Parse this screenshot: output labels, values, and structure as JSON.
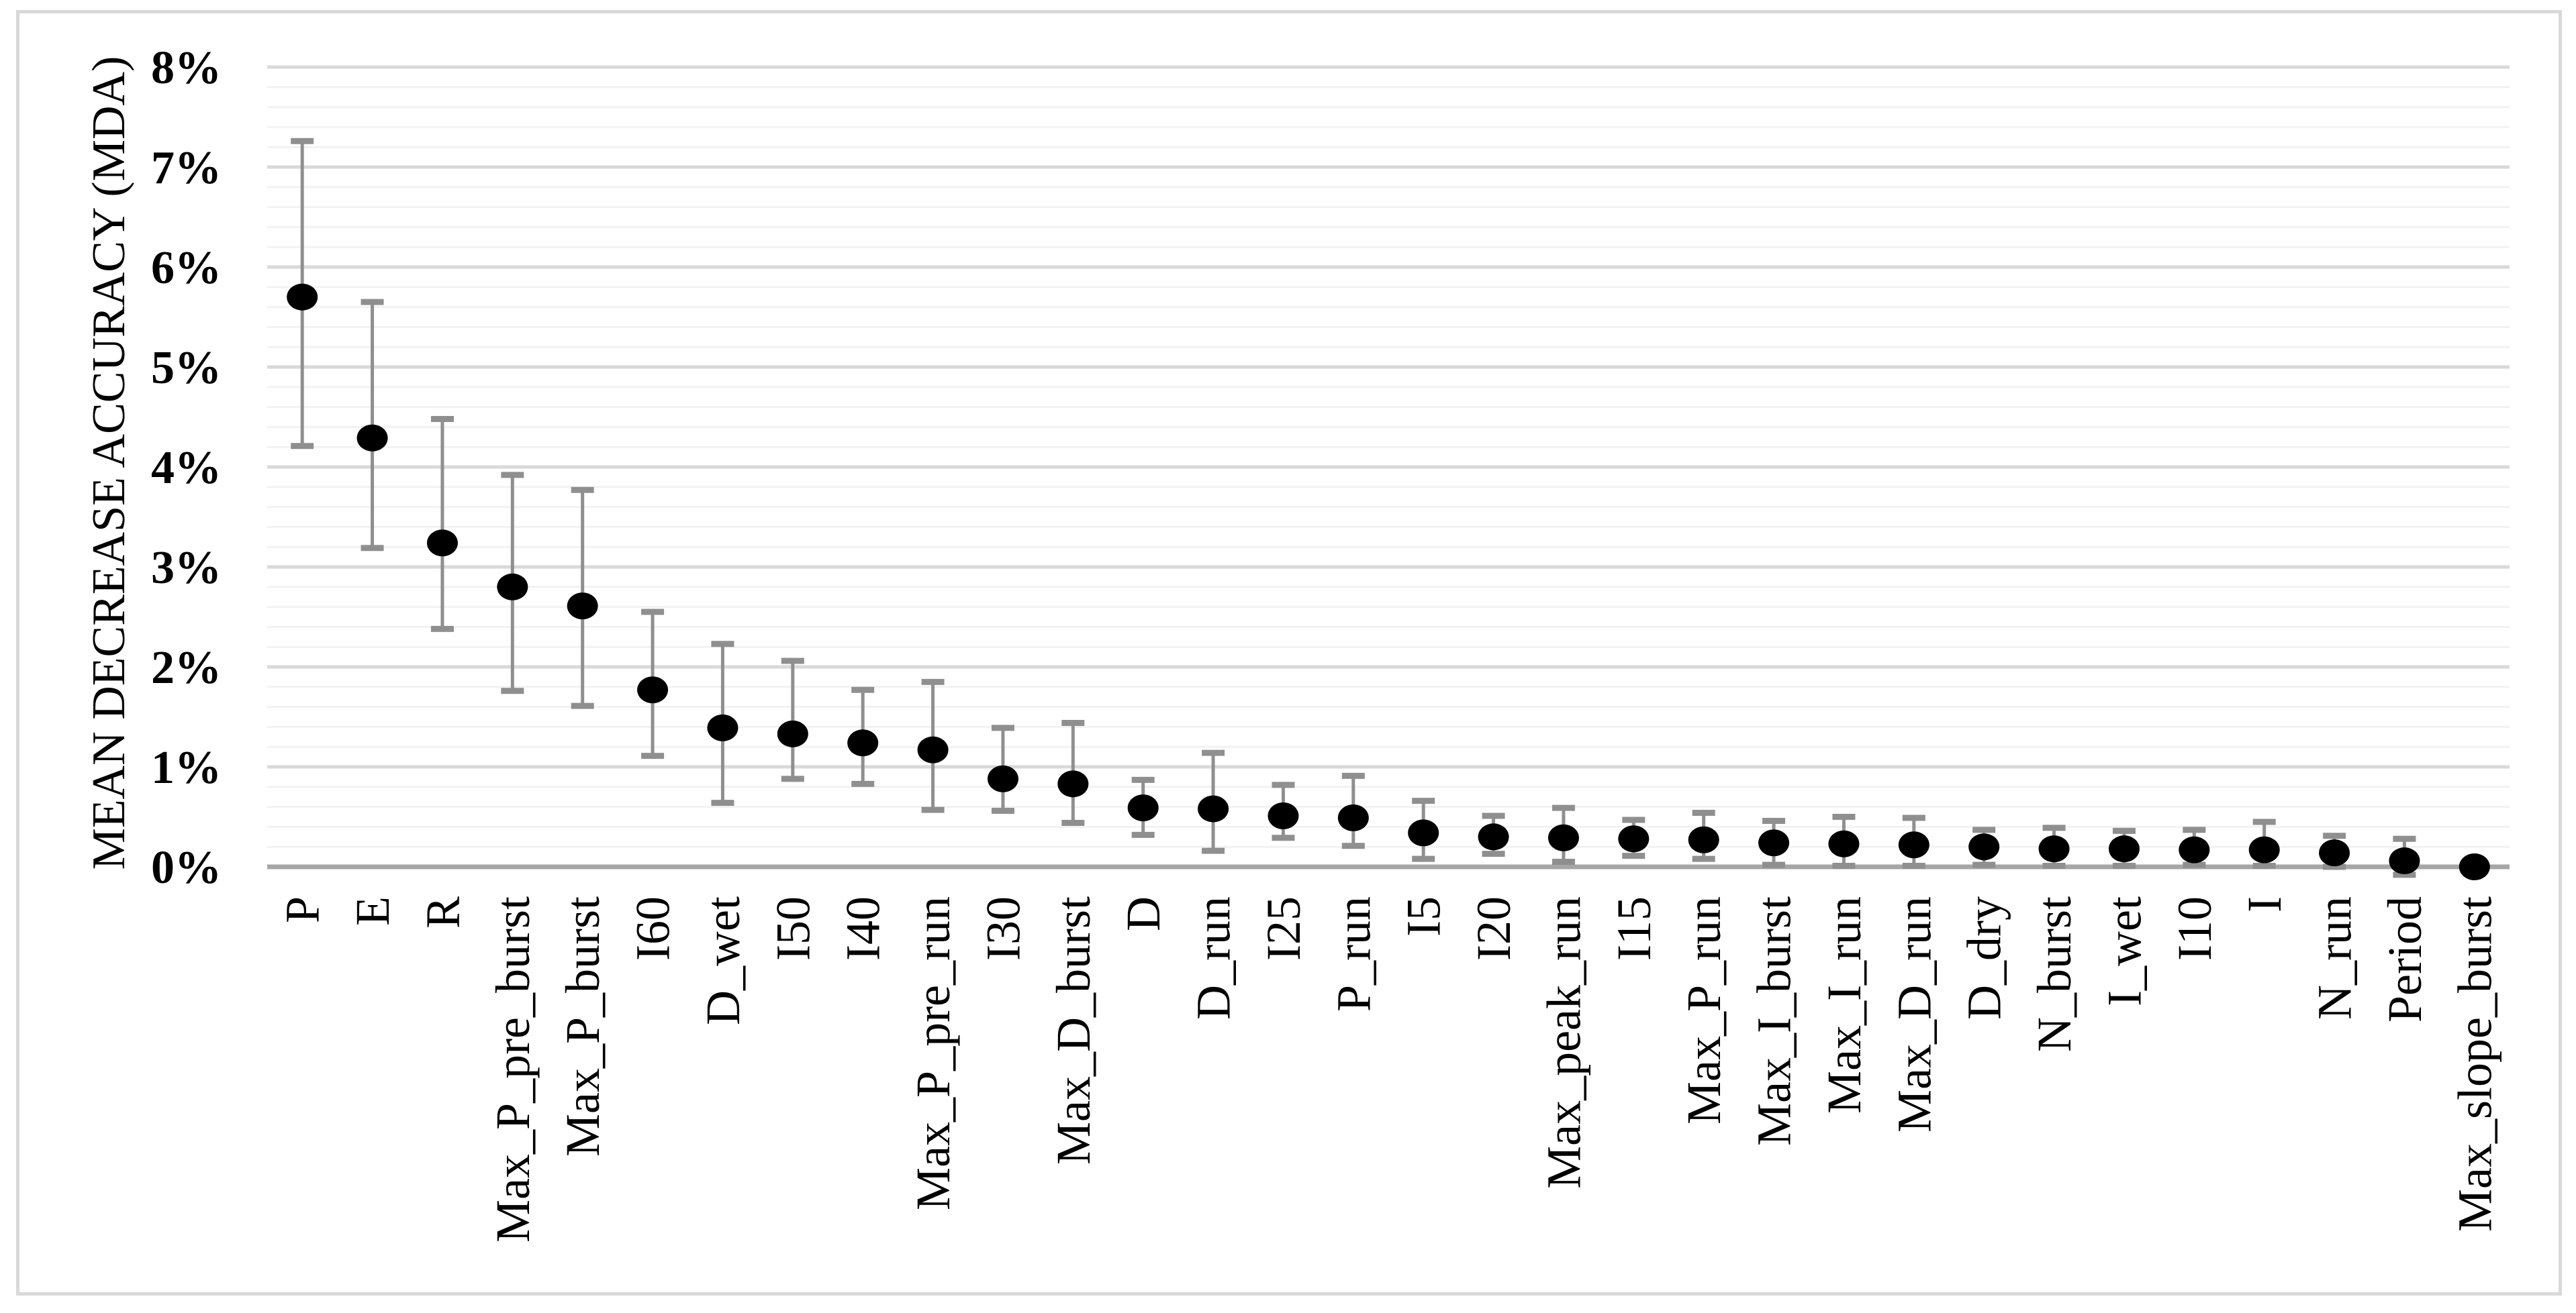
{
  "figure": {
    "background": "#ffffff",
    "frame_border_color": "#d9d9d9"
  },
  "chart_data": {
    "type": "scatter",
    "subtype": "dot-plot-with-error-bars",
    "title": "",
    "xlabel": "",
    "ylabel": "MEAN DECREASE ACCURACY (MDA)",
    "ylim": [
      0,
      8
    ],
    "y_unit": "%",
    "ytick_labels": [
      "0%",
      "1%",
      "2%",
      "3%",
      "4%",
      "5%",
      "6%",
      "7%",
      "8%"
    ],
    "grid": {
      "major_step_pct": 1,
      "minor_step_pct": 0.2,
      "major_color": "#d9d9d9",
      "minor_color": "#f2f2f2",
      "vertical_gridlines": false
    },
    "legend_position": "none",
    "categories": [
      "P",
      "E",
      "R",
      "Max_P_pre_burst",
      "Max_P_burst",
      "I60",
      "D_wet",
      "I50",
      "I40",
      "Max_P_pre_run",
      "I30",
      "Max_D_burst",
      "D",
      "D_run",
      "I25",
      "P_run",
      "I5",
      "I20",
      "Max_peak_run",
      "I15",
      "Max_P_run",
      "Max_I_burst",
      "Max_I_run",
      "Max_D_run",
      "D_dry",
      "N_burst",
      "I_wet",
      "I10",
      "I",
      "N_run",
      "Period",
      "Max_slope_burst"
    ],
    "series": [
      {
        "name": "Mean Decrease Accuracy",
        "marker": "filled-black-dot",
        "values_pct": [
          5.7,
          4.29,
          3.24,
          2.8,
          2.61,
          1.77,
          1.39,
          1.33,
          1.24,
          1.17,
          0.88,
          0.83,
          0.59,
          0.58,
          0.51,
          0.49,
          0.34,
          0.3,
          0.29,
          0.28,
          0.27,
          0.24,
          0.23,
          0.22,
          0.2,
          0.18,
          0.18,
          0.17,
          0.17,
          0.14,
          0.06,
          0.0
        ],
        "error_upper_pct": [
          7.26,
          5.65,
          4.48,
          3.92,
          3.77,
          2.55,
          2.23,
          2.06,
          1.77,
          1.85,
          1.39,
          1.44,
          0.87,
          1.14,
          0.82,
          0.91,
          0.66,
          0.51,
          0.59,
          0.47,
          0.54,
          0.46,
          0.5,
          0.49,
          0.37,
          0.39,
          0.36,
          0.37,
          0.45,
          0.31,
          0.28,
          0.03
        ],
        "error_lower_pct": [
          4.21,
          3.19,
          2.38,
          1.76,
          1.61,
          1.11,
          0.64,
          0.88,
          0.83,
          0.57,
          0.56,
          0.44,
          0.32,
          0.16,
          0.29,
          0.21,
          0.08,
          0.13,
          0.05,
          0.11,
          0.08,
          0.02,
          0.01,
          0.01,
          0.02,
          0.01,
          0.01,
          0.02,
          0.01,
          0.0,
          -0.08,
          -0.03
        ]
      }
    ],
    "colors": {
      "marker": "#000000",
      "error_bar": "#8f8f8f",
      "axis_line": "#a6a6a6",
      "tick_label": "#000000",
      "axis_title": "#000000"
    }
  }
}
